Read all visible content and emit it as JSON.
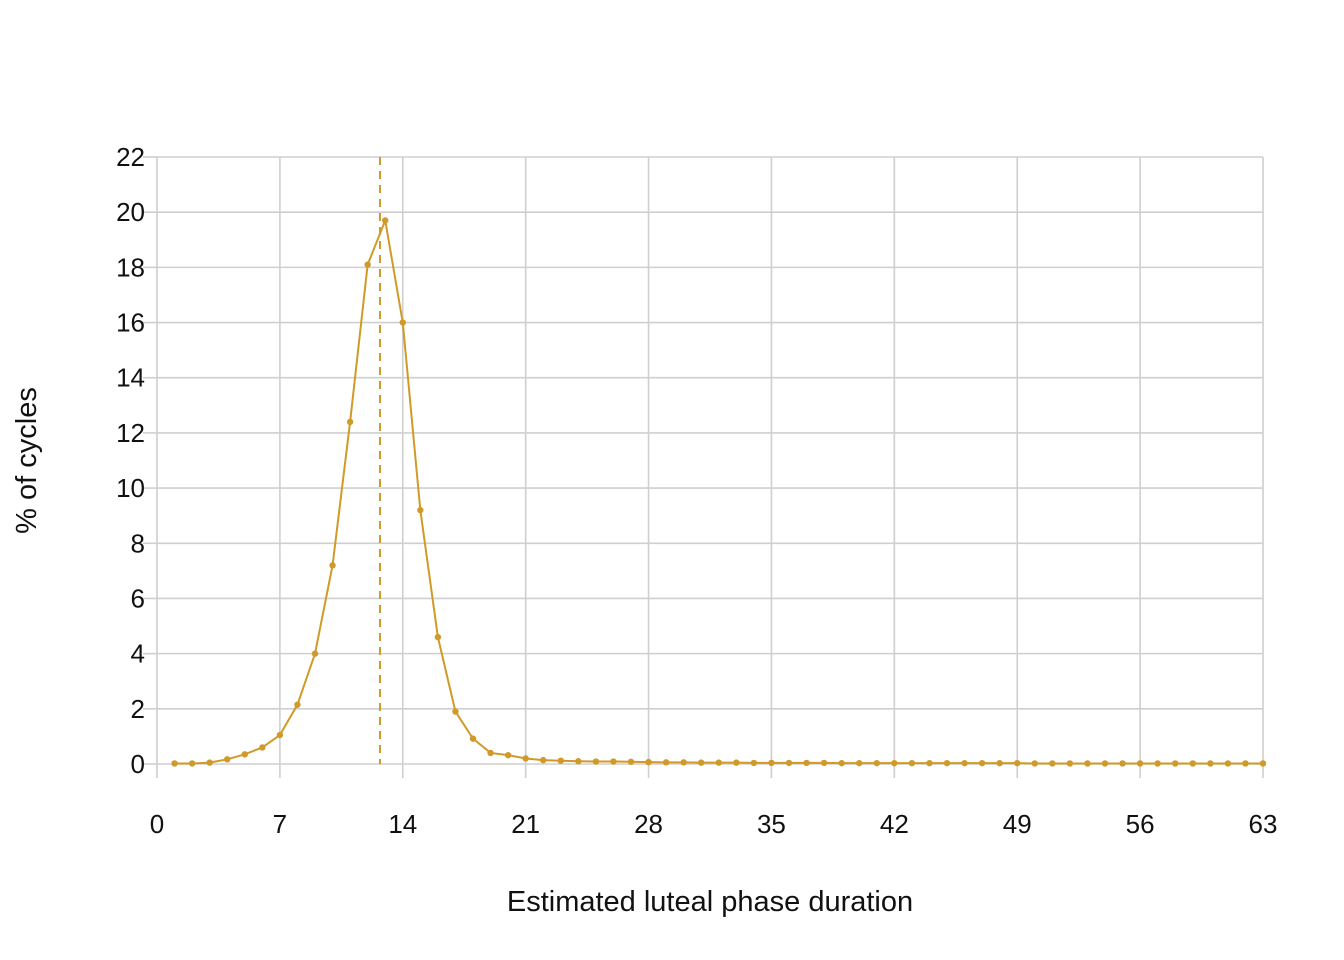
{
  "chart_data": {
    "type": "line",
    "title": "",
    "xlabel": "Estimated luteal phase duration",
    "ylabel": "% of cycles",
    "xlim": [
      0,
      63
    ],
    "ylim": [
      0,
      22
    ],
    "xticks": [
      0,
      7,
      14,
      21,
      28,
      35,
      42,
      49,
      56,
      63
    ],
    "yticks": [
      0,
      2,
      4,
      6,
      8,
      10,
      12,
      14,
      16,
      18,
      20,
      22
    ],
    "grid": true,
    "legend": "none",
    "series": [
      {
        "color": "#d19a28",
        "marker": "circle",
        "x": [
          1,
          2,
          3,
          4,
          5,
          6,
          7,
          8,
          9,
          10,
          11,
          12,
          13,
          14,
          15,
          16,
          17,
          18,
          19,
          20,
          21,
          22,
          23,
          24,
          25,
          26,
          27,
          28,
          29,
          30,
          31,
          32,
          33,
          34,
          35,
          36,
          37,
          38,
          39,
          40,
          41,
          42,
          43,
          44,
          45,
          46,
          47,
          48,
          49,
          50,
          51,
          52,
          53,
          54,
          55,
          56,
          57,
          58,
          59,
          60,
          61,
          62,
          63
        ],
        "y": [
          0.02,
          0.02,
          0.05,
          0.17,
          0.35,
          0.6,
          1.05,
          2.15,
          4.0,
          7.2,
          12.4,
          18.1,
          19.7,
          16.0,
          9.2,
          4.6,
          1.9,
          0.92,
          0.4,
          0.32,
          0.2,
          0.14,
          0.12,
          0.1,
          0.09,
          0.09,
          0.08,
          0.07,
          0.06,
          0.06,
          0.05,
          0.05,
          0.05,
          0.04,
          0.04,
          0.04,
          0.04,
          0.04,
          0.03,
          0.03,
          0.03,
          0.03,
          0.03,
          0.03,
          0.03,
          0.03,
          0.03,
          0.03,
          0.03,
          0.02,
          0.02,
          0.02,
          0.02,
          0.02,
          0.02,
          0.02,
          0.02,
          0.02,
          0.02,
          0.02,
          0.02,
          0.02,
          0.02
        ]
      }
    ],
    "reference_line": {
      "x": 12.7,
      "style": "dashed",
      "color": "#d19a28"
    }
  }
}
